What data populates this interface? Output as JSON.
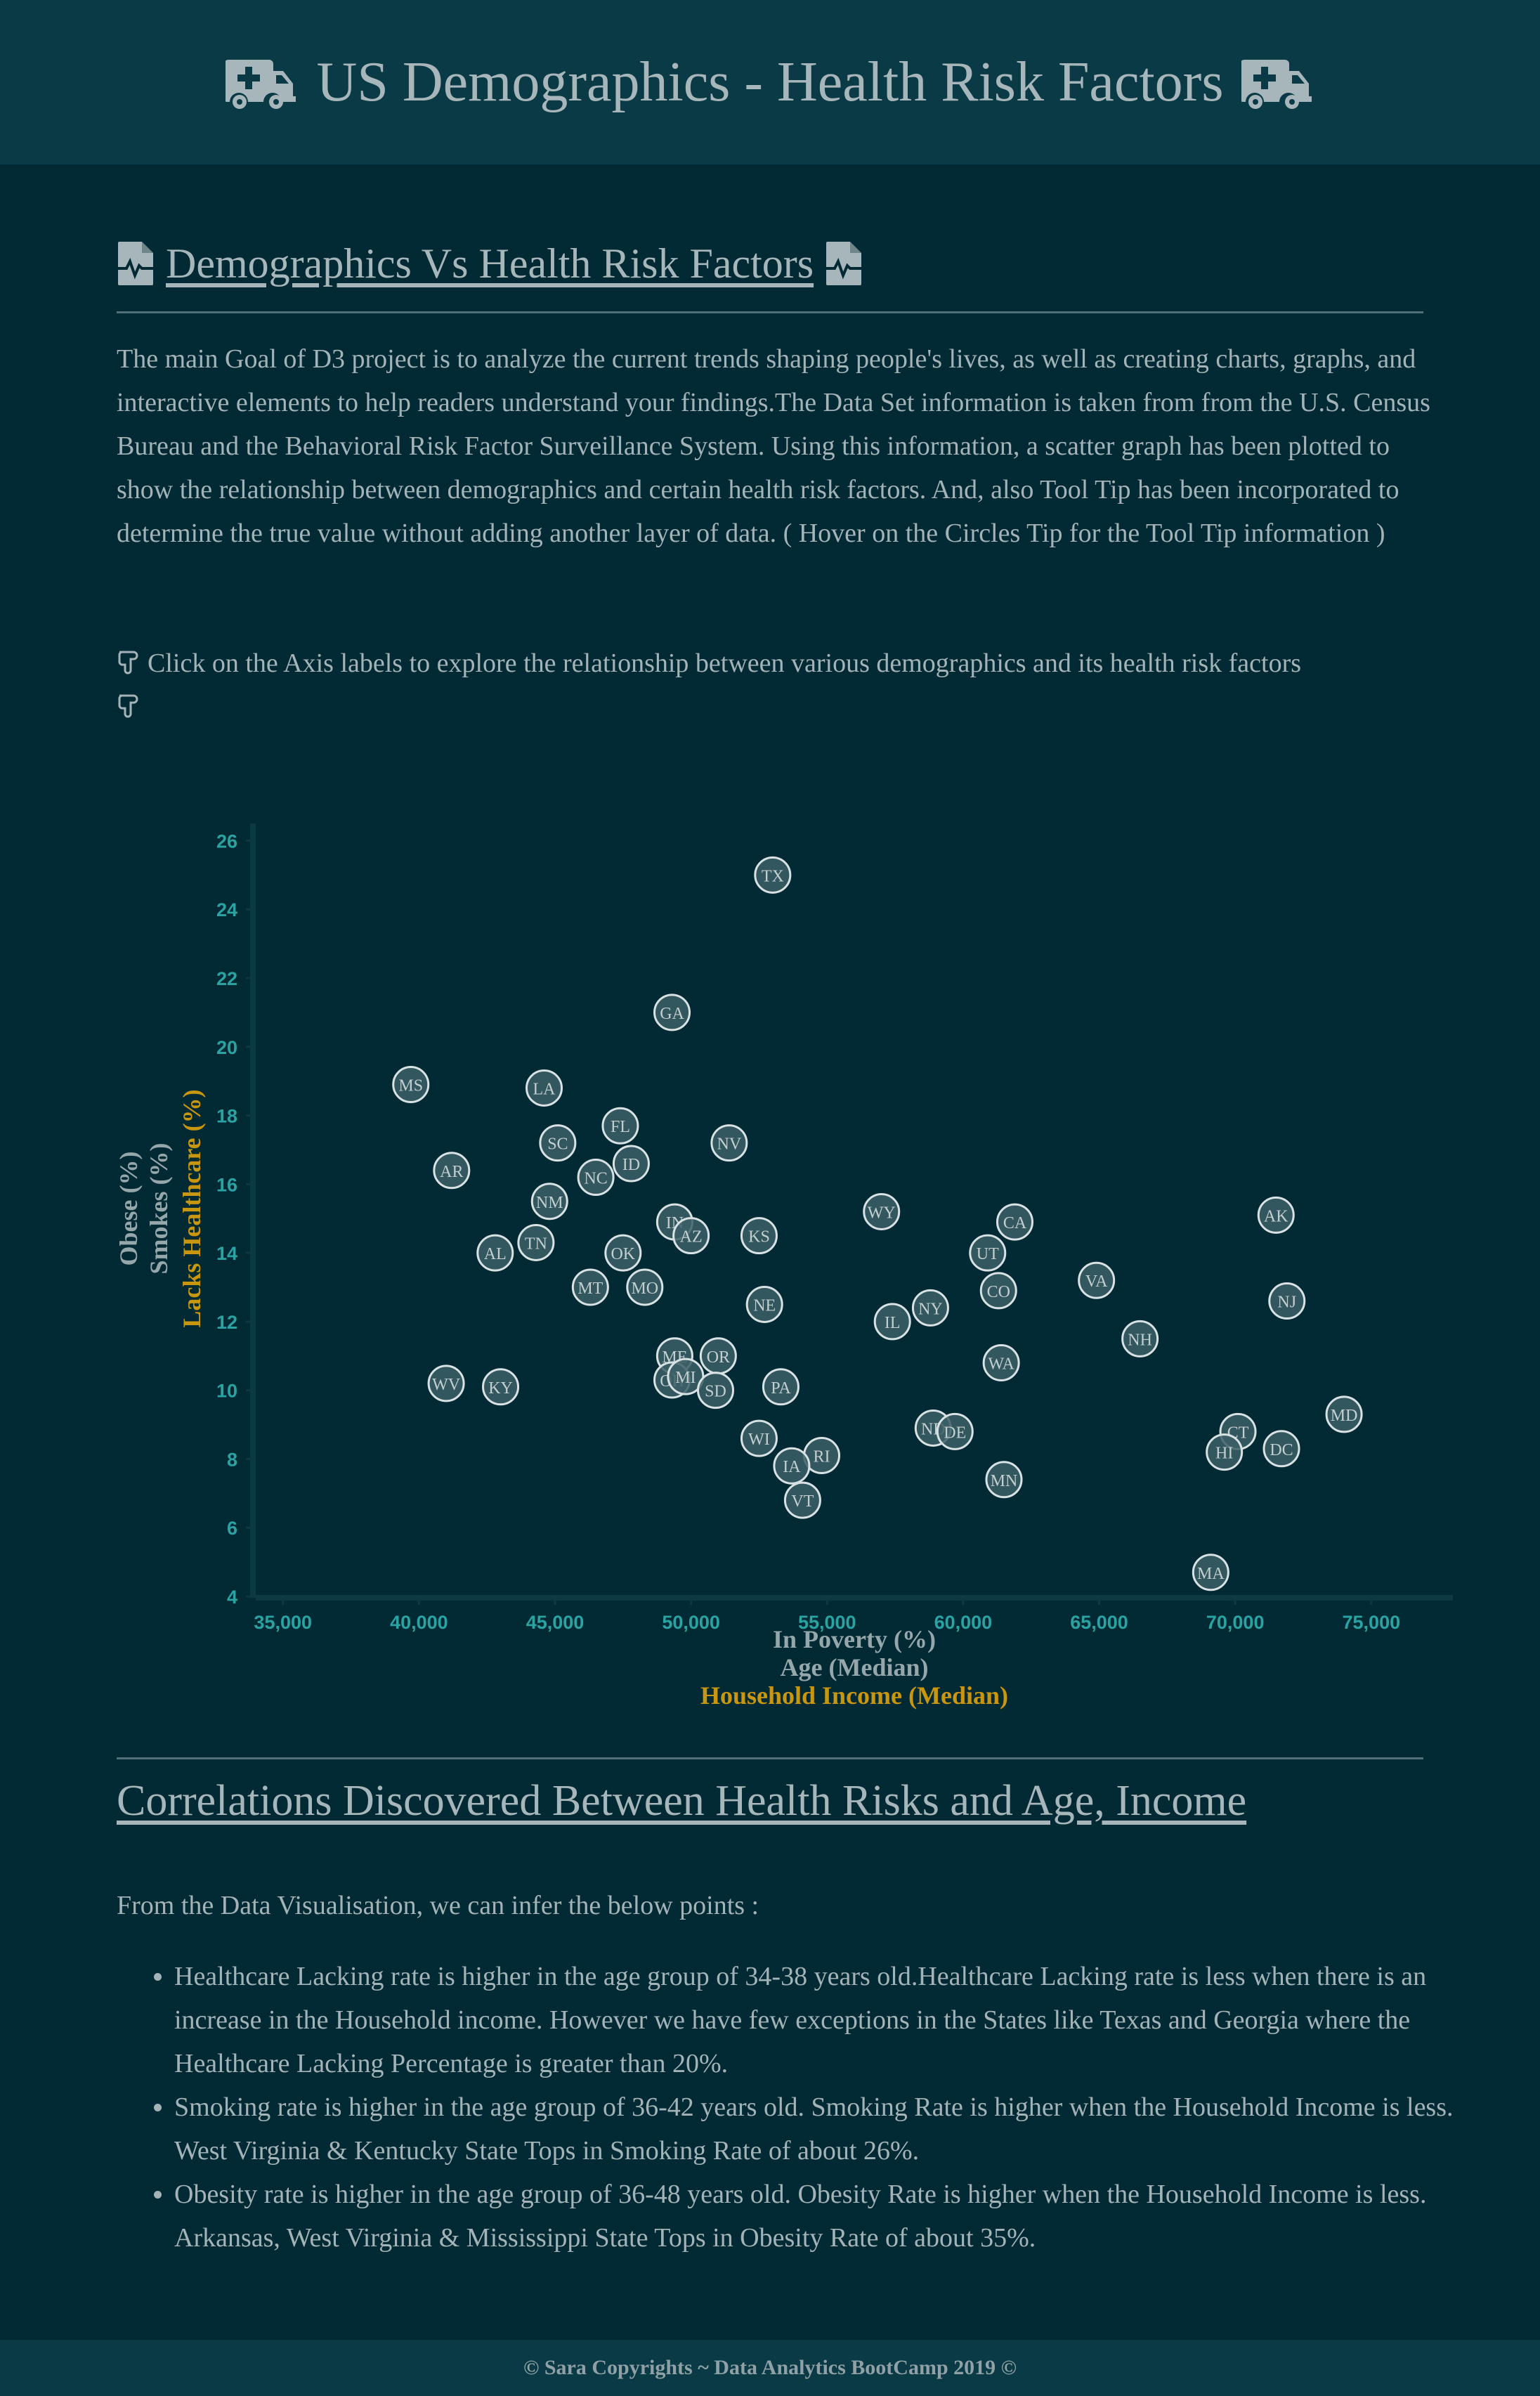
{
  "header": {
    "title": "US Demographics - Health Risk Factors",
    "left_icon": "ambulance-icon",
    "right_icon": "ambulance-icon"
  },
  "section": {
    "title": "Demographics Vs Health Risk Factors",
    "icon": "file-medical-icon",
    "description": "The main Goal of D3 project is to analyze the current trends shaping people's lives, as well as creating charts, graphs, and interactive elements to help readers understand your findings.The Data Set information is taken from from the U.S. Census Bureau and the Behavioral Risk Factor Surveillance System. Using this information, a scatter graph has been plotted to show the relationship between demographics and certain health risk factors. And, also Tool Tip has been incorporated to determine the true value without adding another layer of data. ( Hover on the Circles Tip for the Tool Tip information )",
    "hint": "Click on the Axis labels to explore the relationship between various demographics and its health risk factors",
    "hint_icon": "hand-point-right-icon"
  },
  "chart_data": {
    "type": "scatter",
    "x_axis_options": [
      "In Poverty (%)",
      "Age (Median)",
      "Household Income (Median)"
    ],
    "y_axis_options": [
      "Obese (%)",
      "Smokes (%)",
      "Lacks Healthcare (%)"
    ],
    "active_x": "Household Income (Median)",
    "active_y": "Lacks Healthcare (%)",
    "xlim": [
      34000,
      78000
    ],
    "ylim": [
      4,
      26.5
    ],
    "x_ticks": [
      "35,000",
      "40,000",
      "45,000",
      "50,000",
      "55,000",
      "60,000",
      "65,000",
      "70,000",
      "75,000"
    ],
    "y_ticks": [
      "4",
      "6",
      "8",
      "10",
      "12",
      "14",
      "16",
      "18",
      "20",
      "22",
      "24",
      "26"
    ],
    "points": [
      {
        "label": "TX",
        "x": 53000,
        "y": 25.0
      },
      {
        "label": "GA",
        "x": 49300,
        "y": 21.0
      },
      {
        "label": "MS",
        "x": 39700,
        "y": 18.9
      },
      {
        "label": "LA",
        "x": 44600,
        "y": 18.8
      },
      {
        "label": "FL",
        "x": 47400,
        "y": 17.7
      },
      {
        "label": "SC",
        "x": 45100,
        "y": 17.2
      },
      {
        "label": "NV",
        "x": 51400,
        "y": 17.2
      },
      {
        "label": "ID",
        "x": 47800,
        "y": 16.6
      },
      {
        "label": "AR",
        "x": 41200,
        "y": 16.4
      },
      {
        "label": "NC",
        "x": 46500,
        "y": 16.2
      },
      {
        "label": "NM",
        "x": 44800,
        "y": 15.5
      },
      {
        "label": "WY",
        "x": 57000,
        "y": 15.2
      },
      {
        "label": "AK",
        "x": 71500,
        "y": 15.1
      },
      {
        "label": "IN",
        "x": 49400,
        "y": 14.9
      },
      {
        "label": "CA",
        "x": 61900,
        "y": 14.9
      },
      {
        "label": "AZ",
        "x": 50000,
        "y": 14.5
      },
      {
        "label": "KS",
        "x": 52500,
        "y": 14.5
      },
      {
        "label": "TN",
        "x": 44300,
        "y": 14.3
      },
      {
        "label": "AL",
        "x": 42800,
        "y": 14.0
      },
      {
        "label": "OK",
        "x": 47500,
        "y": 14.0
      },
      {
        "label": "UT",
        "x": 60900,
        "y": 14.0
      },
      {
        "label": "VA",
        "x": 64900,
        "y": 13.2
      },
      {
        "label": "MT",
        "x": 46300,
        "y": 13.0
      },
      {
        "label": "MO",
        "x": 48300,
        "y": 13.0
      },
      {
        "label": "CO",
        "x": 61300,
        "y": 12.9
      },
      {
        "label": "NJ",
        "x": 71900,
        "y": 12.6
      },
      {
        "label": "NE",
        "x": 52700,
        "y": 12.5
      },
      {
        "label": "NY",
        "x": 58800,
        "y": 12.4
      },
      {
        "label": "IL",
        "x": 57400,
        "y": 12.0
      },
      {
        "label": "NH",
        "x": 66500,
        "y": 11.5
      },
      {
        "label": "ME",
        "x": 49400,
        "y": 11.0
      },
      {
        "label": "OR",
        "x": 51000,
        "y": 11.0
      },
      {
        "label": "WA",
        "x": 61400,
        "y": 10.8
      },
      {
        "label": "OH",
        "x": 49300,
        "y": 10.3
      },
      {
        "label": "MI",
        "x": 49800,
        "y": 10.4
      },
      {
        "label": "WV",
        "x": 41000,
        "y": 10.2
      },
      {
        "label": "PA",
        "x": 53300,
        "y": 10.1
      },
      {
        "label": "KY",
        "x": 43000,
        "y": 10.1
      },
      {
        "label": "SD",
        "x": 50900,
        "y": 10.0
      },
      {
        "label": "MD",
        "x": 74000,
        "y": 9.3
      },
      {
        "label": "ND",
        "x": 58900,
        "y": 8.9
      },
      {
        "label": "DE",
        "x": 59700,
        "y": 8.8
      },
      {
        "label": "CT",
        "x": 70100,
        "y": 8.8
      },
      {
        "label": "WI",
        "x": 52500,
        "y": 8.6
      },
      {
        "label": "DC",
        "x": 71700,
        "y": 8.3
      },
      {
        "label": "HI",
        "x": 69600,
        "y": 8.2
      },
      {
        "label": "RI",
        "x": 54800,
        "y": 8.1
      },
      {
        "label": "IA",
        "x": 53700,
        "y": 7.8
      },
      {
        "label": "MN",
        "x": 61500,
        "y": 7.4
      },
      {
        "label": "VT",
        "x": 54100,
        "y": 6.8
      },
      {
        "label": "MA",
        "x": 69100,
        "y": 4.7
      }
    ]
  },
  "correlations": {
    "title": "Correlations Discovered Between Health Risks and Age, Income",
    "intro": "From the Data Visualisation, we can infer the below points :",
    "points": [
      "Healthcare Lacking rate is higher in the age group of 34-38 years old.Healthcare Lacking rate is less when there is an increase in the Household income. However we have few exceptions in the States like Texas and Georgia where the Healthcare Lacking Percentage is greater than 20%.",
      "Smoking rate is higher in the age group of 36-42 years old. Smoking Rate is higher when the Household Income is less. West Virginia & Kentucky State Tops in Smoking Rate of about 26%.",
      "Obesity rate is higher in the age group of 36-48 years old. Obesity Rate is higher when the Household Income is less. Arkansas, West Virginia & Mississippi State Tops in Obesity Rate of about 35%."
    ]
  },
  "footer": {
    "text": "© Sara Copyrights ~ Data Analytics BootCamp 2019 ©"
  },
  "colors": {
    "background": "#022a34",
    "header_bg": "#0a3a45",
    "tick_color": "#2aa3a3",
    "active_axis_label": "#c9960f",
    "inactive_axis_label": "#95a7ab",
    "circle_stroke": "#d8e2e4"
  }
}
